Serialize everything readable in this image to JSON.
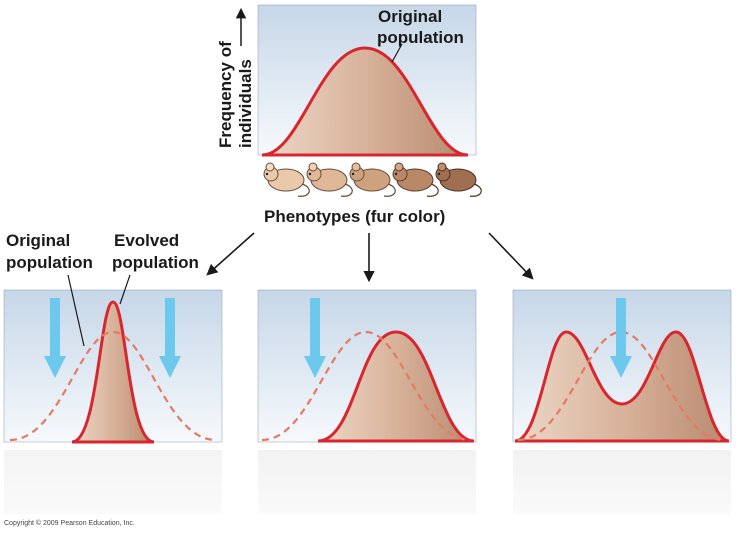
{
  "top_panel": {
    "y_axis_label_line1": "Frequency of",
    "y_axis_label_line2": "individuals",
    "curve_label_line1": "Original",
    "curve_label_line2": "population"
  },
  "phenotype_row": {
    "mice_count": 5,
    "label": "Phenotypes (fur color)"
  },
  "left_panel_labels": {
    "original_line1": "Original",
    "original_line2": "population",
    "evolved_line1": "Evolved",
    "evolved_line2": "population"
  },
  "copyright": "Copyright © 2009 Pearson Education, Inc.",
  "colors": {
    "curve_red": "#d9262e",
    "curve_dashed": "#e47a62",
    "fill_tan": "#d3a88d",
    "panel_top": "#c9d9e8",
    "panel_bottom": "#ffffff",
    "selection_arrow": "#6dc8ee"
  }
}
